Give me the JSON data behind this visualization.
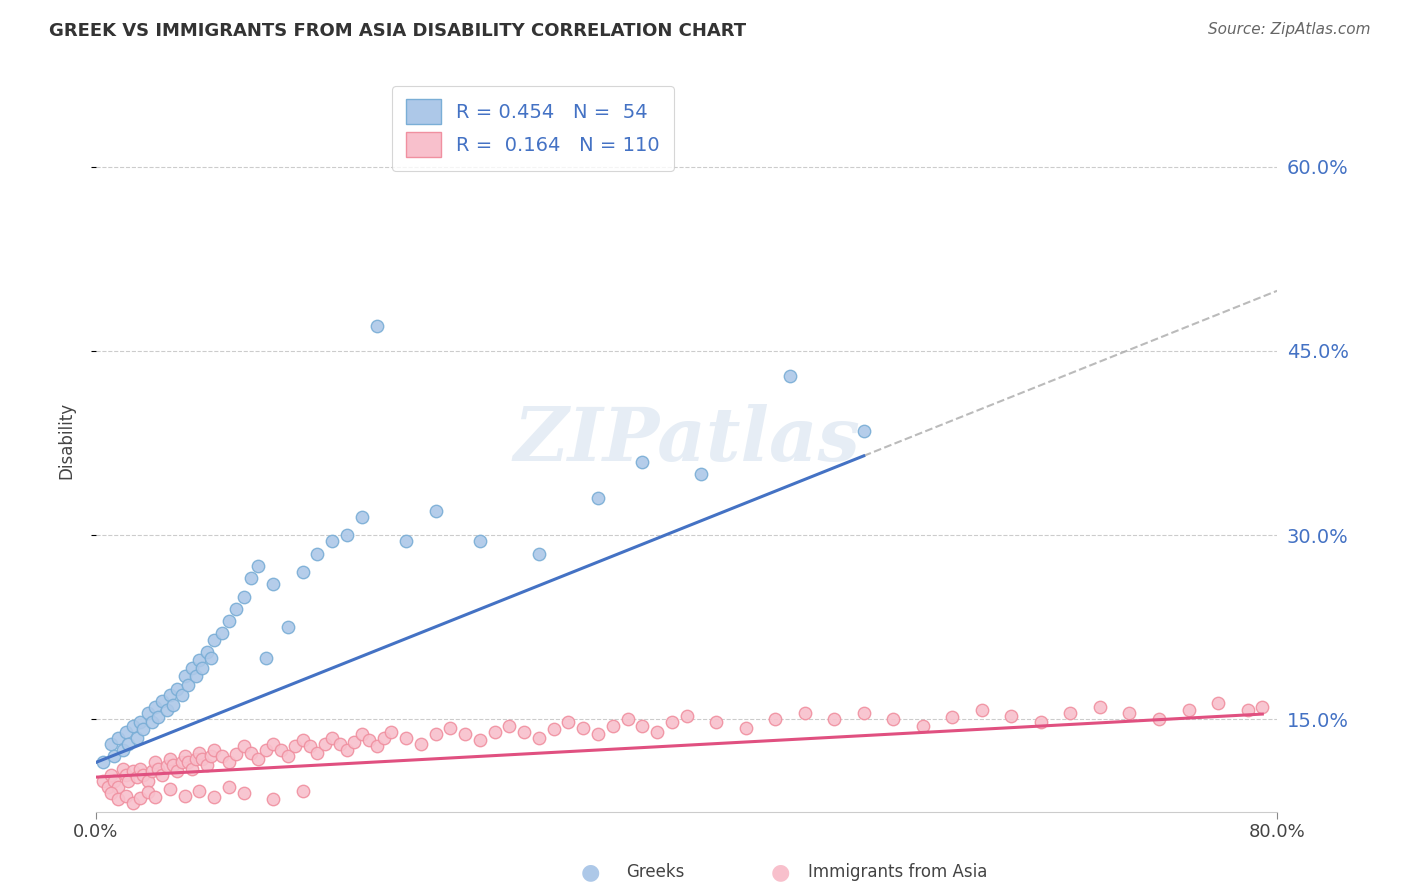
{
  "title": "GREEK VS IMMIGRANTS FROM ASIA DISABILITY CORRELATION CHART",
  "source": "Source: ZipAtlas.com",
  "ylabel": "Disability",
  "y_tick_labels": [
    "15.0%",
    "30.0%",
    "45.0%",
    "60.0%"
  ],
  "y_tick_values": [
    0.15,
    0.3,
    0.45,
    0.6
  ],
  "xlim": [
    0.0,
    0.8
  ],
  "ylim": [
    0.075,
    0.68
  ],
  "color_greek": "#7aaed6",
  "color_greek_fill": "#adc8e8",
  "color_immigrant": "#f090a0",
  "color_immigrant_fill": "#f8c0cc",
  "color_line_greek": "#4472C4",
  "color_line_immigrant": "#E05080",
  "color_dashed": "#aaaaaa",
  "background_color": "#ffffff",
  "grid_color": "#cccccc",
  "greeks_x": [
    0.005,
    0.01,
    0.012,
    0.015,
    0.018,
    0.02,
    0.022,
    0.025,
    0.028,
    0.03,
    0.032,
    0.035,
    0.038,
    0.04,
    0.042,
    0.045,
    0.048,
    0.05,
    0.052,
    0.055,
    0.058,
    0.06,
    0.062,
    0.065,
    0.068,
    0.07,
    0.072,
    0.075,
    0.078,
    0.08,
    0.085,
    0.09,
    0.095,
    0.1,
    0.105,
    0.11,
    0.115,
    0.12,
    0.13,
    0.14,
    0.15,
    0.16,
    0.17,
    0.18,
    0.19,
    0.21,
    0.23,
    0.26,
    0.3,
    0.34,
    0.37,
    0.41,
    0.47,
    0.52
  ],
  "greeks_y": [
    0.115,
    0.13,
    0.12,
    0.135,
    0.125,
    0.14,
    0.13,
    0.145,
    0.135,
    0.148,
    0.142,
    0.155,
    0.148,
    0.16,
    0.152,
    0.165,
    0.158,
    0.17,
    0.162,
    0.175,
    0.17,
    0.185,
    0.178,
    0.192,
    0.185,
    0.198,
    0.192,
    0.205,
    0.2,
    0.215,
    0.22,
    0.23,
    0.24,
    0.25,
    0.265,
    0.275,
    0.2,
    0.26,
    0.225,
    0.27,
    0.285,
    0.295,
    0.3,
    0.315,
    0.47,
    0.295,
    0.32,
    0.295,
    0.285,
    0.33,
    0.36,
    0.35,
    0.43,
    0.385
  ],
  "immigrants_x": [
    0.005,
    0.008,
    0.01,
    0.012,
    0.015,
    0.018,
    0.02,
    0.022,
    0.025,
    0.028,
    0.03,
    0.032,
    0.035,
    0.038,
    0.04,
    0.042,
    0.045,
    0.048,
    0.05,
    0.052,
    0.055,
    0.058,
    0.06,
    0.062,
    0.065,
    0.068,
    0.07,
    0.072,
    0.075,
    0.078,
    0.08,
    0.085,
    0.09,
    0.095,
    0.1,
    0.105,
    0.11,
    0.115,
    0.12,
    0.125,
    0.13,
    0.135,
    0.14,
    0.145,
    0.15,
    0.155,
    0.16,
    0.165,
    0.17,
    0.175,
    0.18,
    0.185,
    0.19,
    0.195,
    0.2,
    0.21,
    0.22,
    0.23,
    0.24,
    0.25,
    0.26,
    0.27,
    0.28,
    0.29,
    0.3,
    0.31,
    0.32,
    0.33,
    0.34,
    0.35,
    0.36,
    0.37,
    0.38,
    0.39,
    0.4,
    0.42,
    0.44,
    0.46,
    0.48,
    0.5,
    0.52,
    0.54,
    0.56,
    0.58,
    0.6,
    0.62,
    0.64,
    0.66,
    0.68,
    0.7,
    0.72,
    0.74,
    0.76,
    0.78,
    0.79,
    0.01,
    0.015,
    0.02,
    0.025,
    0.03,
    0.035,
    0.04,
    0.05,
    0.06,
    0.07,
    0.08,
    0.09,
    0.1,
    0.12,
    0.14
  ],
  "immigrants_y": [
    0.1,
    0.095,
    0.105,
    0.1,
    0.095,
    0.11,
    0.105,
    0.1,
    0.108,
    0.103,
    0.11,
    0.105,
    0.1,
    0.108,
    0.115,
    0.11,
    0.105,
    0.112,
    0.118,
    0.113,
    0.108,
    0.115,
    0.12,
    0.115,
    0.11,
    0.118,
    0.123,
    0.118,
    0.113,
    0.12,
    0.125,
    0.12,
    0.115,
    0.122,
    0.128,
    0.123,
    0.118,
    0.125,
    0.13,
    0.125,
    0.12,
    0.128,
    0.133,
    0.128,
    0.123,
    0.13,
    0.135,
    0.13,
    0.125,
    0.132,
    0.138,
    0.133,
    0.128,
    0.135,
    0.14,
    0.135,
    0.13,
    0.138,
    0.143,
    0.138,
    0.133,
    0.14,
    0.145,
    0.14,
    0.135,
    0.142,
    0.148,
    0.143,
    0.138,
    0.145,
    0.15,
    0.145,
    0.14,
    0.148,
    0.153,
    0.148,
    0.143,
    0.15,
    0.155,
    0.15,
    0.155,
    0.15,
    0.145,
    0.152,
    0.158,
    0.153,
    0.148,
    0.155,
    0.16,
    0.155,
    0.15,
    0.158,
    0.163,
    0.158,
    0.16,
    0.09,
    0.085,
    0.088,
    0.082,
    0.086,
    0.091,
    0.087,
    0.093,
    0.088,
    0.092,
    0.087,
    0.095,
    0.09,
    0.085,
    0.092
  ],
  "greek_line_x": [
    0.0,
    0.52
  ],
  "greek_line_y_intercept": 0.115,
  "greek_line_slope": 0.48,
  "immigrant_line_x": [
    0.0,
    0.79
  ],
  "immigrant_line_y_intercept": 0.103,
  "immigrant_line_slope": 0.065,
  "dashed_line_x": [
    0.52,
    0.8
  ],
  "dashed_line_slope": 0.48,
  "dashed_line_intercept": 0.115
}
